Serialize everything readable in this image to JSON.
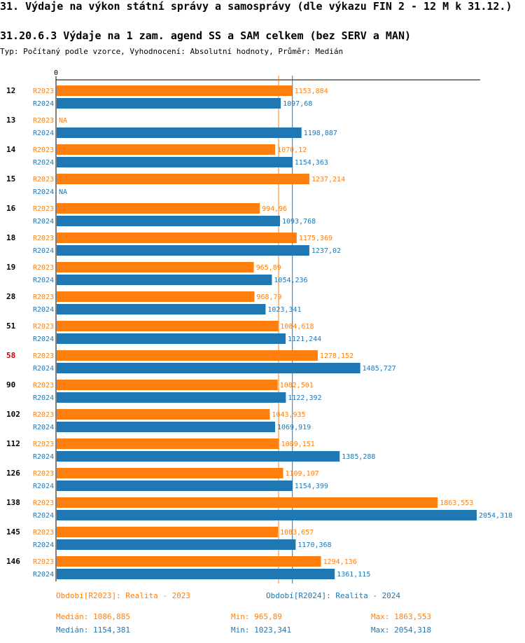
{
  "header": {
    "title": "31. Výdaje na výkon státní správy a samosprávy (dle výkazu FIN 2 - 12 M k 31.12.)",
    "subtitle": "31.20.6.3 Výdaje na 1 zam. agend SS a SAM celkem (bez SERV a MAN)",
    "meta": "Typ: Počítaný podle vzorce, Vyhodnocení: Absolutní hodnoty, Průměr: Medián"
  },
  "chart_data": {
    "type": "bar",
    "orientation": "horizontal",
    "xlim": [
      0,
      2054.318
    ],
    "x_tick_label": "0",
    "highlight_category": "58",
    "categories": [
      "12",
      "13",
      "14",
      "15",
      "16",
      "18",
      "19",
      "28",
      "51",
      "58",
      "90",
      "102",
      "112",
      "126",
      "138",
      "145",
      "146"
    ],
    "series": [
      {
        "name": "R2023",
        "label": "R2023",
        "color": "#ff7f0e",
        "values": [
          1153.884,
          null,
          1070.12,
          1237.214,
          994.96,
          1175.369,
          965.89,
          968.79,
          1084.618,
          1278.152,
          1082.501,
          1043.935,
          1089.151,
          1109.107,
          1863.553,
          1083.657,
          1294.136
        ],
        "value_labels": [
          "1153,884",
          "NA",
          "1070,12",
          "1237,214",
          "994,96",
          "1175,369",
          "965,89",
          "968,79",
          "1084,618",
          "1278,152",
          "1082,501",
          "1043,935",
          "1089,151",
          "1109,107",
          "1863,553",
          "1083,657",
          "1294,136"
        ],
        "median": 1086.885
      },
      {
        "name": "R2024",
        "label": "R2024",
        "color": "#1f77b4",
        "values": [
          1097.68,
          1198.887,
          1154.363,
          null,
          1093.768,
          1237.02,
          1054.236,
          1023.341,
          1121.244,
          1485.727,
          1122.392,
          1069.919,
          1385.288,
          1154.399,
          2054.318,
          1170.368,
          1361.115
        ],
        "value_labels": [
          "1097,68",
          "1198,887",
          "1154,363",
          "NA",
          "1093,768",
          "1237,02",
          "1054,236",
          "1023,341",
          "1121,244",
          "1485,727",
          "1122,392",
          "1069,919",
          "1385,288",
          "1154,399",
          "2054,318",
          "1170,368",
          "1361,115"
        ],
        "median": 1154.381
      }
    ]
  },
  "legend": {
    "r2023": "Období[R2023]: Realita - 2023",
    "r2024": "Období[R2024]: Realita - 2024"
  },
  "stats": {
    "r2023": {
      "median": "Medián: 1086,885",
      "min": "Min: 965,89",
      "max": "Max: 1863,553"
    },
    "r2024": {
      "median": "Medián: 1154,381",
      "min": "Min: 1023,341",
      "max": "Max: 2054,318"
    }
  }
}
